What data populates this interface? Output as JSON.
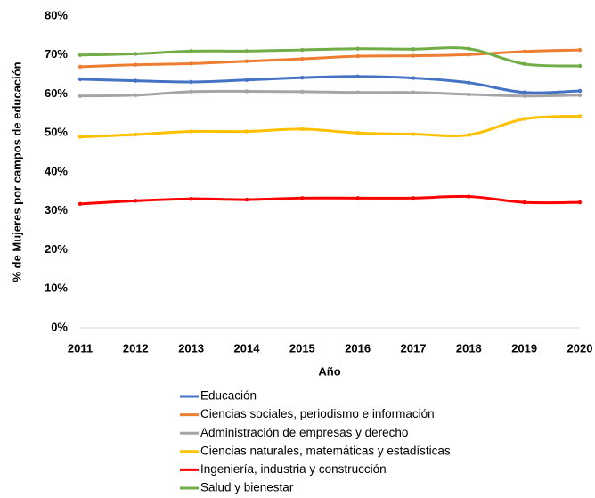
{
  "chart_data": {
    "type": "line",
    "y_label": "% de  Mujeres por campos de educación",
    "x_label": "Año",
    "x": [
      2011,
      2012,
      2013,
      2014,
      2015,
      2016,
      2017,
      2018,
      2019,
      2020
    ],
    "xlim": [
      2011,
      2020
    ],
    "xticks": [
      2011,
      2012,
      2013,
      2014,
      2015,
      2016,
      2017,
      2018,
      2019,
      2020
    ],
    "ylim": [
      0,
      80
    ],
    "yticks": [
      {
        "value": 0,
        "label": "0%"
      },
      {
        "value": 10,
        "label": "10%"
      },
      {
        "value": 20,
        "label": "20%"
      },
      {
        "value": 30,
        "label": "30%"
      },
      {
        "value": 40,
        "label": "40%"
      },
      {
        "value": 50,
        "label": "50%"
      },
      {
        "value": 60,
        "label": "60%"
      },
      {
        "value": 70,
        "label": "70%"
      },
      {
        "value": 80,
        "label": "80%"
      }
    ],
    "grid": false,
    "legend": "bottom",
    "series": [
      {
        "name": "Educación",
        "color": "#4472c4",
        "values": [
          63.8,
          63.4,
          63.1,
          63.6,
          64.2,
          64.5,
          64.1,
          62.9,
          60.4,
          60.8
        ]
      },
      {
        "name": "Ciencias sociales, periodismo e información",
        "color": "#ed7d31",
        "values": [
          67.0,
          67.5,
          67.8,
          68.4,
          69.0,
          69.7,
          69.8,
          70.1,
          70.9,
          71.3
        ]
      },
      {
        "name": "Administración de empresas y derecho",
        "color": "#a5a5a5",
        "values": [
          59.5,
          59.7,
          60.6,
          60.7,
          60.6,
          60.4,
          60.4,
          59.9,
          59.5,
          59.7
        ]
      },
      {
        "name": "Ciencias naturales, matemáticas y estadísticas",
        "color": "#ffc000",
        "values": [
          49.0,
          49.6,
          50.4,
          50.4,
          51.0,
          50.0,
          49.7,
          49.5,
          53.6,
          54.3
        ]
      },
      {
        "name": "Ingeniería, industria y construcción",
        "color": "#ff0000",
        "values": [
          31.8,
          32.6,
          33.1,
          32.9,
          33.3,
          33.3,
          33.3,
          33.7,
          32.2,
          32.2
        ]
      },
      {
        "name": "Salud y bienestar",
        "color": "#70ad47",
        "values": [
          70.0,
          70.3,
          71.0,
          71.0,
          71.3,
          71.6,
          71.5,
          71.6,
          67.7,
          67.2
        ]
      }
    ]
  }
}
